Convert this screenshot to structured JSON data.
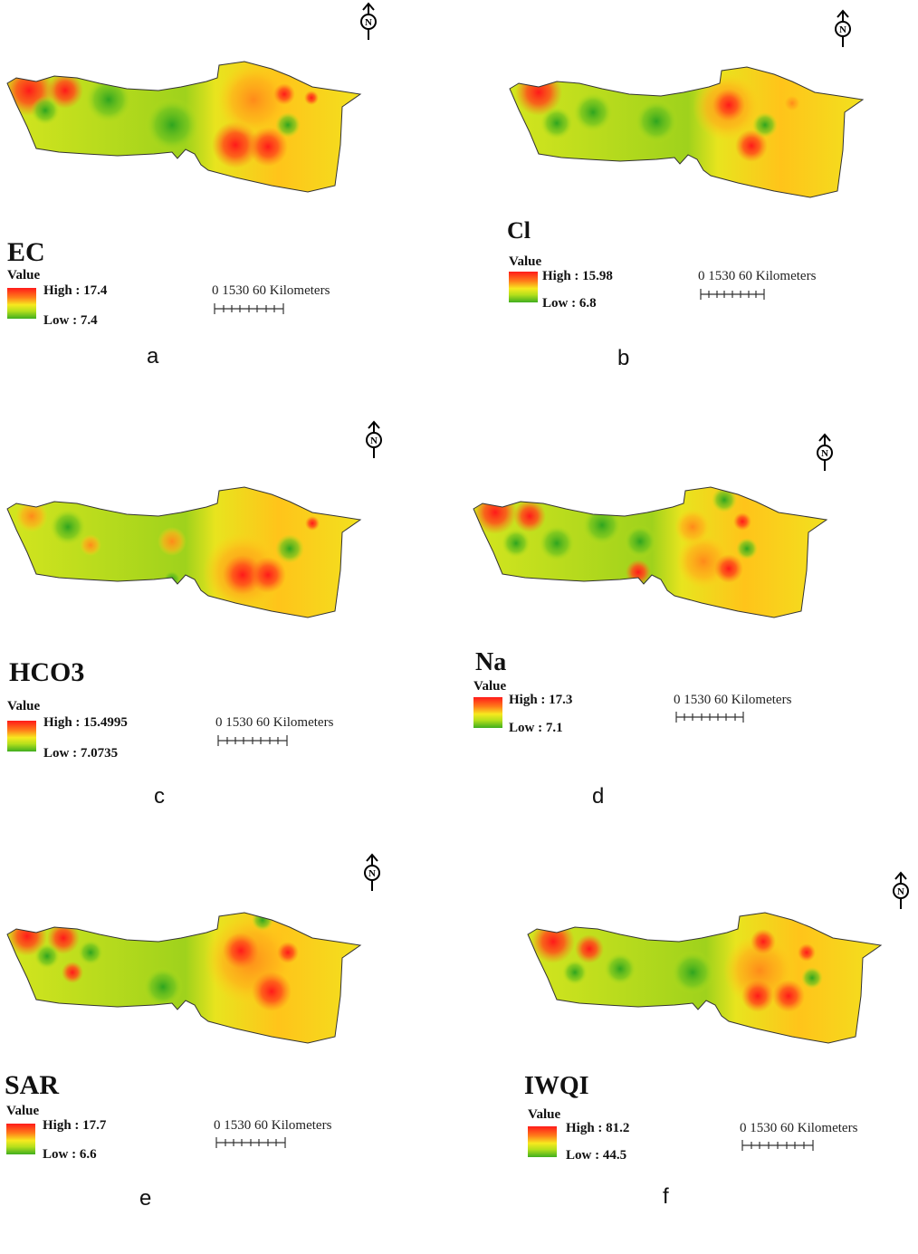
{
  "panels": [
    {
      "id": "a",
      "title": "EC",
      "value_label": "Value",
      "high": "High : 17.4",
      "low": "Low : 7.4",
      "scale": "0 1530    60 Kilometers",
      "letter": "a"
    },
    {
      "id": "b",
      "title": "Cl",
      "value_label": "Value",
      "high": "High : 15.98",
      "low": "Low : 6.8",
      "scale": "0 1530    60 Kilometers",
      "letter": "b"
    },
    {
      "id": "c",
      "title": "HCO3",
      "value_label": "Value",
      "high": "High : 15.4995",
      "low": "Low : 7.0735",
      "scale": "0 1530    60 Kilometers",
      "letter": "c"
    },
    {
      "id": "d",
      "title": "Na",
      "value_label": "Value",
      "high": "High : 17.3",
      "low": "Low : 7.1",
      "scale": "0 1530    60 Kilometers",
      "letter": "d"
    },
    {
      "id": "e",
      "title": "SAR",
      "value_label": "Value",
      "high": "High : 17.7",
      "low": "Low : 6.6",
      "scale": "0 1530    60 Kilometers",
      "letter": "e"
    },
    {
      "id": "f",
      "title": "IWQI",
      "value_label": "Value",
      "high": "High : 81.2",
      "low": "Low : 44.5",
      "scale": "0 1530    60 Kilometers",
      "letter": "f"
    }
  ],
  "north_symbol": "N",
  "colors": {
    "high": "#ff1a1a",
    "mid_high": "#ff7a1a",
    "mid": "#f7e91f",
    "mid_low": "#b6e01c",
    "low": "#3fae1f"
  }
}
